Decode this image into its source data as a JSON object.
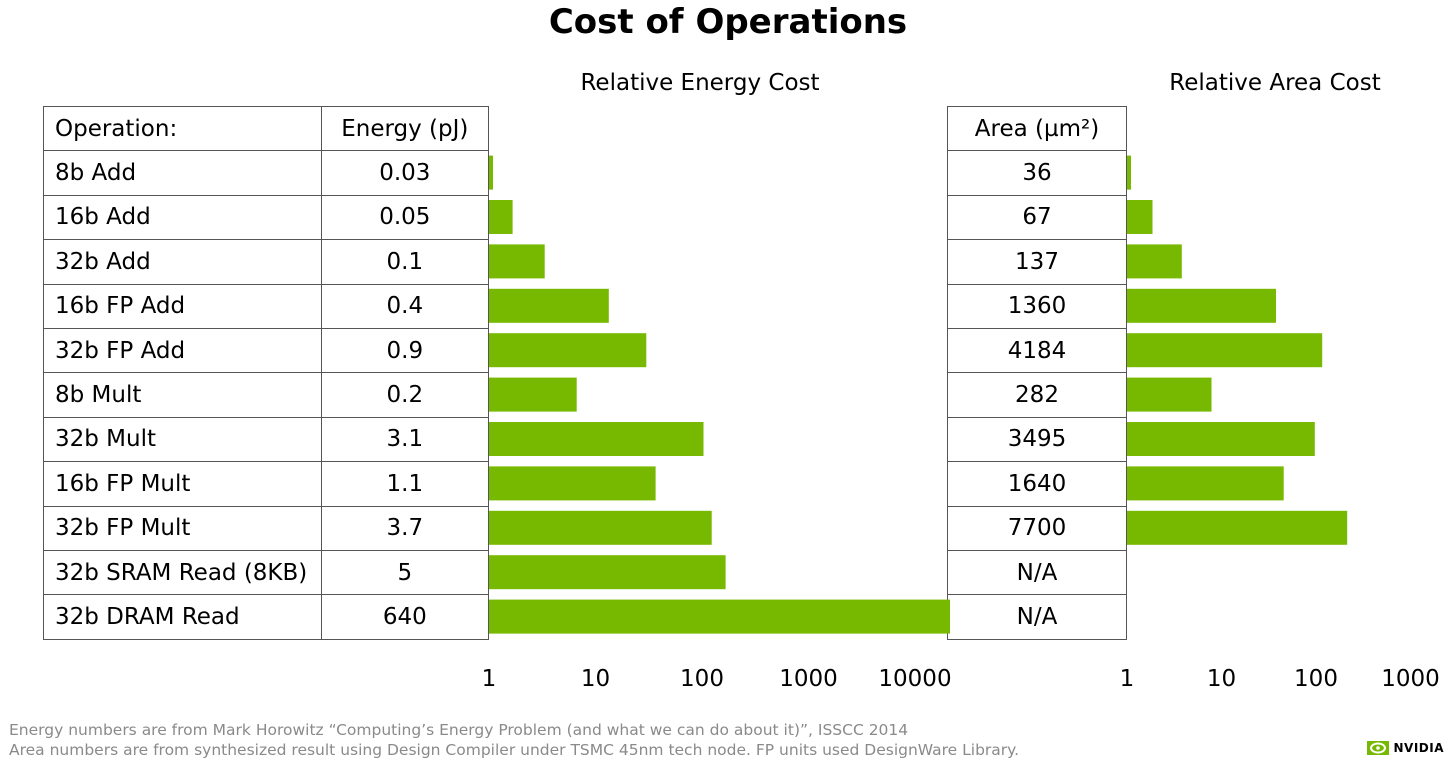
{
  "title": "Cost of Operations",
  "colors": {
    "bar": "#76b900",
    "grid": "#555555",
    "footnote": "#8a8a8a"
  },
  "headers": {
    "operation": "Operation:",
    "energy": "Energy (pJ)",
    "area": "Area (µm²)"
  },
  "chart_data": [
    {
      "type": "bar",
      "orientation": "horizontal",
      "title": "Relative Energy Cost",
      "scale": "log",
      "xlim": [
        1,
        10000
      ],
      "tick_labels": [
        "1",
        "10",
        "100",
        "1000",
        "10000"
      ],
      "categories": [
        "8b Add",
        "16b Add",
        "32b Add",
        "16b FP Add",
        "32b FP Add",
        "8b Mult",
        "32b Mult",
        "16b FP Mult",
        "32b FP Mult",
        "32b SRAM Read (8KB)",
        "32b DRAM Read"
      ],
      "value_labels": [
        "0.03",
        "0.05",
        "0.1",
        "0.4",
        "0.9",
        "0.2",
        "3.1",
        "1.1",
        "3.7",
        "5",
        "640"
      ],
      "values": [
        0.03,
        0.05,
        0.1,
        0.4,
        0.9,
        0.2,
        3.1,
        1.1,
        3.7,
        5,
        640
      ],
      "unit": "pJ",
      "relative_base": 0.03
    },
    {
      "type": "bar",
      "orientation": "horizontal",
      "title": "Relative Area Cost",
      "scale": "log",
      "xlim": [
        1,
        1000
      ],
      "tick_labels": [
        "1",
        "10",
        "100",
        "1000"
      ],
      "categories": [
        "8b Add",
        "16b Add",
        "32b Add",
        "16b FP Add",
        "32b FP Add",
        "8b Mult",
        "32b Mult",
        "16b FP Mult",
        "32b FP Mult",
        "32b SRAM Read (8KB)",
        "32b DRAM Read"
      ],
      "value_labels": [
        "36",
        "67",
        "137",
        "1360",
        "4184",
        "282",
        "3495",
        "1640",
        "7700",
        "N/A",
        "N/A"
      ],
      "values": [
        36,
        67,
        137,
        1360,
        4184,
        282,
        3495,
        1640,
        7700,
        null,
        null
      ],
      "unit": "µm²",
      "relative_base": 36
    }
  ],
  "footnotes": [
    "Energy numbers are from Mark Horowitz “Computing’s Energy Problem (and what we can do about it)”, ISSCC 2014",
    "Area numbers are from synthesized result using Design Compiler under TSMC 45nm tech node. FP units used DesignWare Library."
  ],
  "logo": {
    "text": "NVIDIA"
  }
}
